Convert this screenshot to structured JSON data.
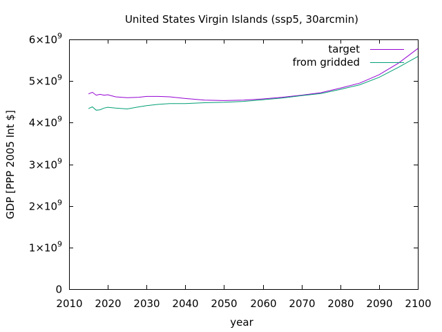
{
  "chart_data": {
    "type": "line",
    "title": "United States Virgin Islands (ssp5, 30arcmin)",
    "xlabel": "year",
    "ylabel": "GDP [PPP 2005 Int $]",
    "xlim": [
      2010,
      2100
    ],
    "ylim": [
      0,
      6000000000
    ],
    "xticks": [
      2010,
      2020,
      2030,
      2040,
      2050,
      2060,
      2070,
      2080,
      2090,
      2100
    ],
    "yticks": [
      0,
      1000000000,
      2000000000,
      3000000000,
      4000000000,
      5000000000,
      6000000000
    ],
    "ytick_labels": [
      {
        "mantissa": "0",
        "exponent": ""
      },
      {
        "mantissa": "1×10",
        "exponent": "9"
      },
      {
        "mantissa": "2×10",
        "exponent": "9"
      },
      {
        "mantissa": "3×10",
        "exponent": "9"
      },
      {
        "mantissa": "4×10",
        "exponent": "9"
      },
      {
        "mantissa": "5×10",
        "exponent": "9"
      },
      {
        "mantissa": "6×10",
        "exponent": "9"
      }
    ],
    "grid": false,
    "legend_position": "top-right",
    "series": [
      {
        "name": "target",
        "color": "#9400d3",
        "x": [
          2015,
          2016,
          2017,
          2018,
          2019,
          2020,
          2022,
          2025,
          2028,
          2030,
          2033,
          2036,
          2040,
          2045,
          2050,
          2055,
          2060,
          2065,
          2070,
          2075,
          2080,
          2085,
          2090,
          2095,
          2100
        ],
        "y": [
          4690000000,
          4730000000,
          4660000000,
          4680000000,
          4660000000,
          4670000000,
          4620000000,
          4600000000,
          4610000000,
          4630000000,
          4630000000,
          4620000000,
          4580000000,
          4540000000,
          4530000000,
          4540000000,
          4570000000,
          4610000000,
          4660000000,
          4720000000,
          4830000000,
          4950000000,
          5150000000,
          5430000000,
          5780000000
        ]
      },
      {
        "name": "from gridded",
        "color": "#009e73",
        "x": [
          2015,
          2016,
          2017,
          2018,
          2019,
          2020,
          2022,
          2025,
          2028,
          2030,
          2033,
          2036,
          2040,
          2045,
          2050,
          2055,
          2060,
          2065,
          2070,
          2075,
          2080,
          2085,
          2090,
          2095,
          2100
        ],
        "y": [
          4340000000,
          4380000000,
          4300000000,
          4310000000,
          4350000000,
          4370000000,
          4350000000,
          4330000000,
          4380000000,
          4410000000,
          4440000000,
          4460000000,
          4460000000,
          4480000000,
          4490000000,
          4510000000,
          4550000000,
          4590000000,
          4650000000,
          4700000000,
          4800000000,
          4910000000,
          5090000000,
          5330000000,
          5590000000
        ]
      }
    ]
  }
}
